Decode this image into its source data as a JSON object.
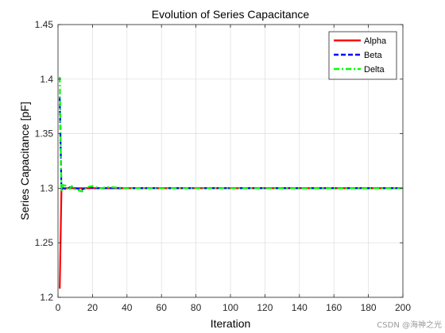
{
  "chart_data": {
    "type": "line",
    "title": "Evolution of Series Capacitance",
    "xlabel": "Iteration",
    "ylabel": "Series Capacitance [pF]",
    "xlim": [
      0,
      200
    ],
    "ylim": [
      1.2,
      1.45
    ],
    "xticks": [
      "0",
      "20",
      "40",
      "60",
      "80",
      "100",
      "120",
      "140",
      "160",
      "180",
      "200"
    ],
    "yticks": [
      "1.2",
      "1.25",
      "1.3",
      "1.35",
      "1.4",
      "1.45"
    ],
    "grid": true,
    "legend_position": "top-right",
    "series": [
      {
        "name": "Alpha",
        "color": "#ff0000",
        "style": "solid",
        "points": [
          [
            1,
            1.208
          ],
          [
            2,
            1.299
          ],
          [
            3,
            1.3
          ],
          [
            4,
            1.3
          ],
          [
            6,
            1.3
          ],
          [
            10,
            1.3
          ],
          [
            15,
            1.3
          ],
          [
            20,
            1.3
          ],
          [
            30,
            1.3
          ],
          [
            50,
            1.3
          ],
          [
            100,
            1.3
          ],
          [
            150,
            1.3
          ],
          [
            200,
            1.3
          ]
        ]
      },
      {
        "name": "Beta",
        "color": "#0000ff",
        "style": "dashed",
        "points": [
          [
            1,
            1.384
          ],
          [
            2,
            1.299
          ],
          [
            3,
            1.3
          ],
          [
            5,
            1.299
          ],
          [
            7,
            1.301
          ],
          [
            10,
            1.3
          ],
          [
            14,
            1.299
          ],
          [
            18,
            1.301
          ],
          [
            22,
            1.3
          ],
          [
            30,
            1.3
          ],
          [
            45,
            1.3
          ],
          [
            60,
            1.3
          ],
          [
            100,
            1.3
          ],
          [
            130,
            1.3
          ],
          [
            160,
            1.3
          ],
          [
            200,
            1.3
          ]
        ]
      },
      {
        "name": "Delta",
        "color": "#00ff00",
        "style": "dashdot",
        "points": [
          [
            1,
            1.402
          ],
          [
            2,
            1.297
          ],
          [
            3,
            1.303
          ],
          [
            5,
            1.302
          ],
          [
            6,
            1.298
          ],
          [
            8,
            1.302
          ],
          [
            10,
            1.299
          ],
          [
            14,
            1.297
          ],
          [
            17,
            1.301
          ],
          [
            20,
            1.302
          ],
          [
            24,
            1.3
          ],
          [
            30,
            1.301
          ],
          [
            40,
            1.3
          ],
          [
            60,
            1.3
          ],
          [
            100,
            1.3
          ],
          [
            150,
            1.3
          ],
          [
            200,
            1.3
          ]
        ]
      }
    ]
  },
  "watermark": "CSDN @海神之光"
}
